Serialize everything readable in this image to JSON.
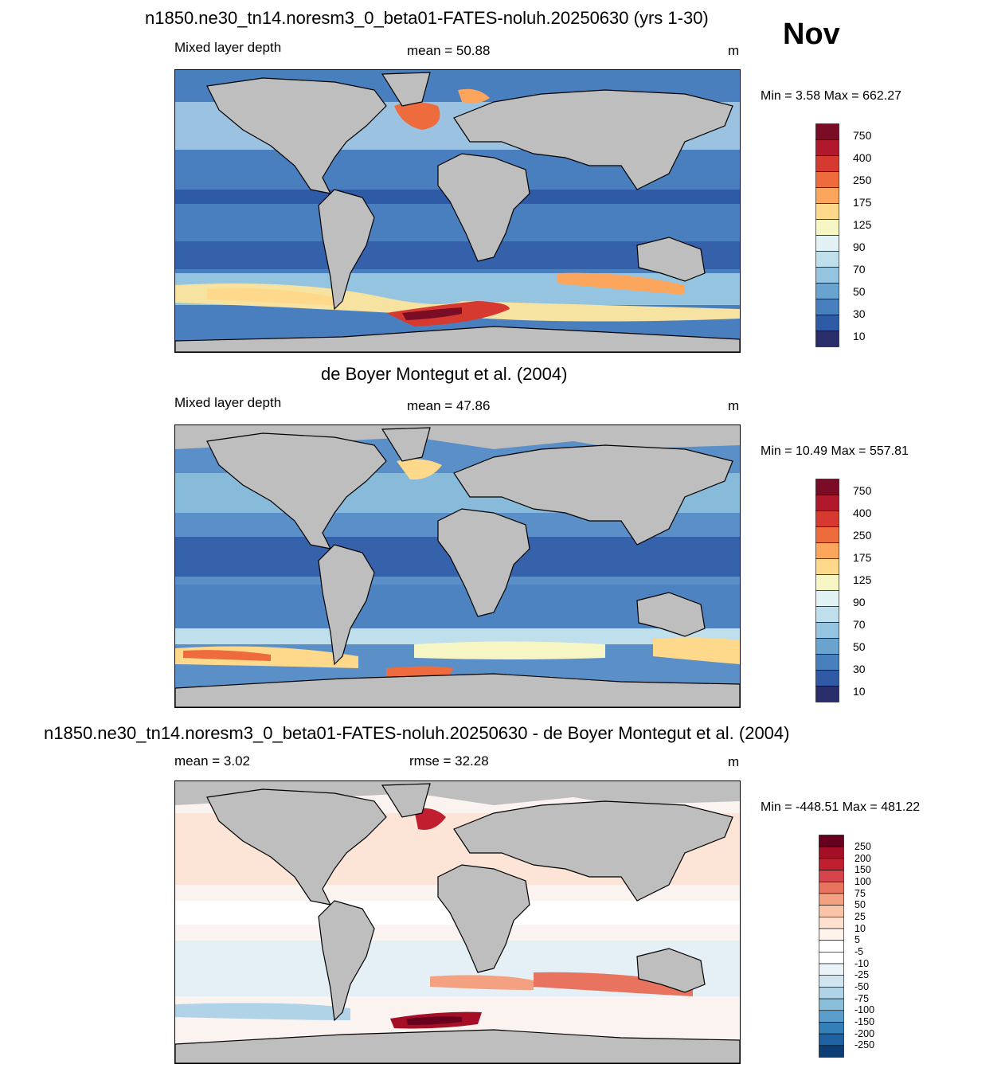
{
  "month": "Nov",
  "panels": [
    {
      "id": "model",
      "title": "n1850.ne30_tn14.noresm3_0_beta01-FATES-noluh.20250630 (yrs 1-30)",
      "left_label": "Mixed layer depth",
      "center_label": "mean =  50.88",
      "units": "m",
      "minmax": "Min =   3.58 Max = 662.27",
      "colorbar_ticks": [
        "750",
        "400",
        "250",
        "175",
        "125",
        "90",
        "70",
        "50",
        "30",
        "10"
      ]
    },
    {
      "id": "obs",
      "title": "de Boyer Montegut et al. (2004)",
      "left_label": "Mixed layer depth",
      "center_label": "mean =  47.86",
      "units": "m",
      "minmax": "Min =  10.49 Max = 557.81",
      "colorbar_ticks": [
        "750",
        "400",
        "250",
        "175",
        "125",
        "90",
        "70",
        "50",
        "30",
        "10"
      ]
    },
    {
      "id": "diff",
      "title": "n1850.ne30_tn14.noresm3_0_beta01-FATES-noluh.20250630 - de Boyer Montegut et al. (2004)",
      "left_label": "mean =   3.02",
      "center_label": "rmse =  32.28",
      "units": "m",
      "minmax": "Min = -448.51 Max = 481.22",
      "colorbar_ticks": [
        "250",
        "200",
        "150",
        "100",
        "75",
        "50",
        "25",
        "10",
        "5",
        "-5",
        "-10",
        "-25",
        "-50",
        "-75",
        "-100",
        "-150",
        "-200",
        "-250"
      ]
    }
  ],
  "colors": {
    "land": "#bebebe",
    "seq_palette": [
      "#7a0c25",
      "#b2182b",
      "#d6392f",
      "#ee6b3d",
      "#fca55d",
      "#fed98b",
      "#f6f6c4",
      "#e2f1f4",
      "#bfdfec",
      "#94c4df",
      "#6ba3cf",
      "#4880be",
      "#2f5aa6",
      "#2a2e6b"
    ],
    "div_palette": [
      "#67001f",
      "#a50f26",
      "#c11f30",
      "#d6454b",
      "#e8735f",
      "#f3a181",
      "#f9c4a8",
      "#fde0cf",
      "#fff3ec",
      "#ffffff",
      "#ffffff",
      "#eaf3f8",
      "#d1e5f0",
      "#b0d3e8",
      "#8abfdb",
      "#5b9ecb",
      "#3380b8",
      "#1f62a4",
      "#0d3d75"
    ]
  }
}
